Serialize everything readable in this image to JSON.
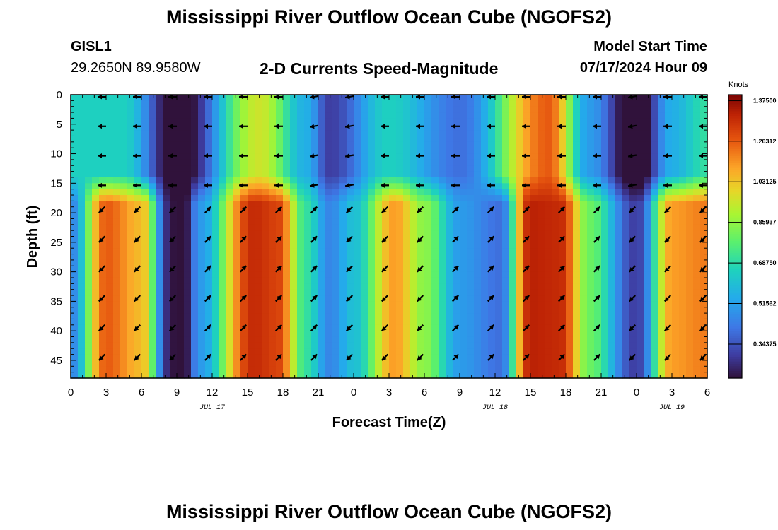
{
  "header": {
    "title": "Mississippi River Outflow Ocean Cube (NGOFS2)",
    "station_id": "GISL1",
    "coordinates": "29.2650N  89.9580W",
    "subtitle": "2-D Currents Speed-Magnitude",
    "model_start_label": "Model Start Time",
    "model_start_value": "07/17/2024 Hour 09"
  },
  "footer": {
    "title": "Mississippi River Outflow Ocean Cube (NGOFS2)"
  },
  "colorbar": {
    "units": "Knots",
    "ticks": [
      1.375,
      1.20312,
      1.03125,
      0.85937,
      0.6875,
      0.51562,
      0.34375
    ],
    "tick_labels": [
      "1.37500",
      "1.20312",
      "1.03125",
      "0.85937",
      "0.68750",
      "0.51562",
      "0.34375"
    ],
    "min": 0.2,
    "max": 1.4
  },
  "chart_data": {
    "type": "heatmap",
    "title": "2-D Currents Speed-Magnitude",
    "xlabel": "Forecast Time(Z)",
    "ylabel": "Depth (ft)",
    "x_range": [
      0,
      54
    ],
    "y_range": [
      0,
      48
    ],
    "y_inverted": true,
    "x_ticks": [
      0,
      3,
      6,
      9,
      12,
      15,
      18,
      21,
      24,
      27,
      30,
      33,
      36,
      39,
      42,
      45,
      48,
      51,
      54
    ],
    "x_tick_labels": [
      "0",
      "3",
      "6",
      "9",
      "12",
      "15",
      "18",
      "21",
      "0",
      "3",
      "6",
      "9",
      "12",
      "15",
      "18",
      "21",
      "0",
      "3",
      "6"
    ],
    "y_ticks": [
      0,
      5,
      10,
      15,
      20,
      25,
      30,
      35,
      40,
      45
    ],
    "y_tick_labels": [
      "0",
      "5",
      "10",
      "15",
      "20",
      "25",
      "30",
      "35",
      "40",
      "45"
    ],
    "date_labels": [
      {
        "x": 12,
        "label": "JUL 17"
      },
      {
        "x": 36,
        "label": "JUL 18"
      },
      {
        "x": 51,
        "label": "JUL 19"
      }
    ],
    "z_units": "Knots",
    "z_range": [
      0.2,
      1.4
    ],
    "surface_layer": {
      "depth_range": [
        0,
        15
      ],
      "peaks": [
        {
          "t": 4.5,
          "speed": 0.65
        },
        {
          "t": 9,
          "speed": 0.12
        },
        {
          "t": 16,
          "speed": 0.95
        },
        {
          "t": 20,
          "speed": 0.55
        },
        {
          "t": 22,
          "speed": 0.3
        },
        {
          "t": 27,
          "speed": 0.65
        },
        {
          "t": 33,
          "speed": 0.4
        },
        {
          "t": 40.5,
          "speed": 1.2
        },
        {
          "t": 44,
          "speed": 0.5
        },
        {
          "t": 48,
          "speed": 0.1
        },
        {
          "t": 51,
          "speed": 0.55
        },
        {
          "t": 54,
          "speed": 0.7
        }
      ]
    },
    "bottom_layer": {
      "depth_range": [
        15,
        48
      ],
      "peaks": [
        {
          "t": 0,
          "speed": 0.45
        },
        {
          "t": 3,
          "speed": 1.2
        },
        {
          "t": 6,
          "speed": 1.05
        },
        {
          "t": 8.3,
          "speed": 0.25
        },
        {
          "t": 9.3,
          "speed": 0.12
        },
        {
          "t": 11,
          "speed": 0.5
        },
        {
          "t": 15.5,
          "speed": 1.3
        },
        {
          "t": 17.5,
          "speed": 1.25
        },
        {
          "t": 20,
          "speed": 0.7
        },
        {
          "t": 22,
          "speed": 0.45
        },
        {
          "t": 24,
          "speed": 0.6
        },
        {
          "t": 27.5,
          "speed": 1.1
        },
        {
          "t": 30,
          "speed": 0.85
        },
        {
          "t": 33,
          "speed": 0.5
        },
        {
          "t": 36.5,
          "speed": 0.4
        },
        {
          "t": 39,
          "speed": 1.32
        },
        {
          "t": 41.5,
          "speed": 1.3
        },
        {
          "t": 44,
          "speed": 0.8
        },
        {
          "t": 48,
          "speed": 0.3
        },
        {
          "t": 51,
          "speed": 1.1
        },
        {
          "t": 54,
          "speed": 1.15
        }
      ]
    },
    "vectors": {
      "times": [
        3,
        6,
        9,
        12,
        15,
        18,
        21,
        24,
        27,
        30,
        33,
        36,
        39,
        42,
        45,
        48,
        51,
        54
      ],
      "surface_depths": [
        0,
        5,
        10,
        15
      ],
      "surface_direction_deg": [
        180,
        180,
        180,
        180,
        180,
        180,
        170,
        170,
        180,
        180,
        180,
        180,
        180,
        180,
        180,
        170,
        180,
        180
      ],
      "bottom_depths": [
        19.5,
        24.5,
        29.5,
        34.5,
        39.5,
        44.5
      ],
      "bottom_direction_deg": [
        135,
        135,
        135,
        315,
        315,
        315,
        315,
        135,
        135,
        135,
        315,
        315,
        315,
        315,
        315,
        135,
        135,
        135
      ]
    }
  }
}
